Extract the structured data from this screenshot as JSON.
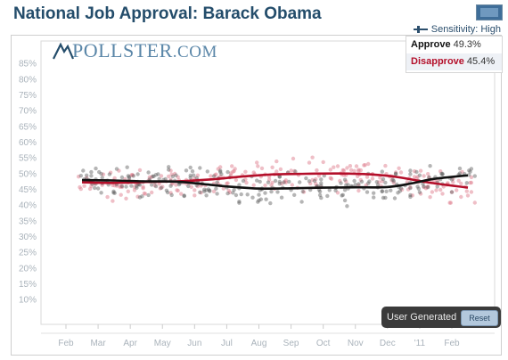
{
  "title": "National Job Approval: Barack Obama",
  "sensitivity_label": "Sensitivity: High",
  "logo_text": "POLLSTER",
  "logo_suffix": ".COM",
  "legend": {
    "approve_label": "Approve",
    "approve_value": "49.3%",
    "disapprove_label": "Disapprove",
    "disapprove_value": "45.4%"
  },
  "user_generated_label": "User Generated",
  "reset_label": "Reset",
  "colors": {
    "approve": "#111111",
    "disapprove": "#b40f2a",
    "approve_dot": "#5a5a5a",
    "disapprove_dot": "#e07f8f",
    "title": "#244d6b"
  },
  "chart_data": {
    "type": "scatter",
    "yticks": [
      "85%",
      "80%",
      "75%",
      "70%",
      "65%",
      "60%",
      "55%",
      "50%",
      "45%",
      "40%",
      "35%",
      "30%",
      "25%",
      "20%",
      "15%",
      "10%"
    ],
    "ylim": [
      0,
      90
    ],
    "x_month_labels": [
      "Feb",
      "Mar",
      "Apr",
      "May",
      "Jun",
      "Jul",
      "Aug",
      "Sep",
      "Oct",
      "Nov",
      "Dec",
      "'11",
      "Feb"
    ],
    "grid": false,
    "legend_position": "top-right",
    "series": [
      {
        "name": "Approve",
        "trend": [
          {
            "date": "2010-02-15",
            "value": 47.8
          },
          {
            "date": "2010-03-15",
            "value": 47.7
          },
          {
            "date": "2010-04-15",
            "value": 47.4
          },
          {
            "date": "2010-05-15",
            "value": 47.3
          },
          {
            "date": "2010-06-10",
            "value": 46.5
          },
          {
            "date": "2010-07-01",
            "value": 45.8
          },
          {
            "date": "2010-08-01",
            "value": 45.1
          },
          {
            "date": "2010-09-01",
            "value": 45.2
          },
          {
            "date": "2010-10-01",
            "value": 45.4
          },
          {
            "date": "2010-11-01",
            "value": 45.5
          },
          {
            "date": "2010-12-01",
            "value": 45.6
          },
          {
            "date": "2010-12-25",
            "value": 46.8
          },
          {
            "date": "2011-01-15",
            "value": 48.2
          },
          {
            "date": "2011-02-15",
            "value": 49.3
          }
        ]
      },
      {
        "name": "Disapprove",
        "trend": [
          {
            "date": "2010-02-15",
            "value": 47.1
          },
          {
            "date": "2010-03-15",
            "value": 46.9
          },
          {
            "date": "2010-04-15",
            "value": 47.2
          },
          {
            "date": "2010-05-15",
            "value": 47.4
          },
          {
            "date": "2010-06-15",
            "value": 48.0
          },
          {
            "date": "2010-07-15",
            "value": 48.9
          },
          {
            "date": "2010-08-15",
            "value": 49.6
          },
          {
            "date": "2010-09-15",
            "value": 49.8
          },
          {
            "date": "2010-10-15",
            "value": 49.9
          },
          {
            "date": "2010-11-15",
            "value": 49.6
          },
          {
            "date": "2010-12-10",
            "value": 48.8
          },
          {
            "date": "2011-01-10",
            "value": 47.0
          },
          {
            "date": "2011-02-15",
            "value": 45.4
          }
        ]
      }
    ]
  }
}
